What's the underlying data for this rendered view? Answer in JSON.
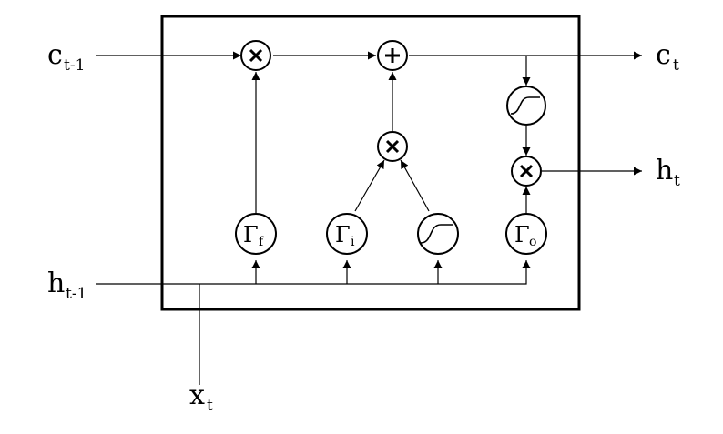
{
  "labels": {
    "c_prev": {
      "base": "c",
      "sub": "t-1"
    },
    "c_t": {
      "base": "c",
      "sub": "t"
    },
    "h_prev": {
      "base": "h",
      "sub": "t-1"
    },
    "h_t": {
      "base": "h",
      "sub": "t"
    },
    "x_t": {
      "base": "x",
      "sub": "t"
    }
  },
  "gates": {
    "forget": {
      "symbol": "Γ",
      "sub": "f"
    },
    "input": {
      "symbol": "Γ",
      "sub": "i"
    },
    "output": {
      "symbol": "Γ",
      "sub": "o"
    }
  },
  "operations": {
    "multiply_icon": "times-icon",
    "add_icon": "plus-icon",
    "activation_icon": "sigmoid-curve-icon"
  }
}
